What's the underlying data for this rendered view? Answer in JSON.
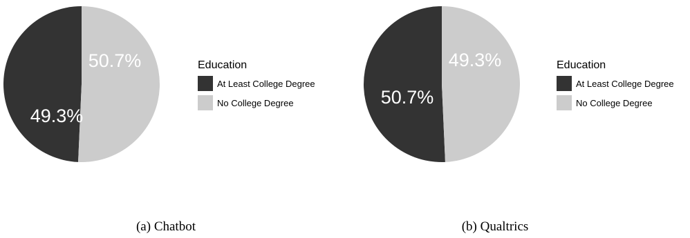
{
  "chart_data": [
    {
      "type": "pie",
      "caption": "(a) Chatbot",
      "legend_title": "Education",
      "legend_placement": "right",
      "categories": [
        "At Least College Degree",
        "No College Degree"
      ],
      "values": [
        49.3,
        50.7
      ],
      "labels": [
        "49.3%",
        "50.7%"
      ],
      "colors": [
        "#333333",
        "#cccccc"
      ],
      "label_colors": [
        "#ffffff",
        "#ffffff"
      ]
    },
    {
      "type": "pie",
      "caption": "(b) Qualtrics",
      "legend_title": "Education",
      "legend_placement": "right",
      "categories": [
        "At Least College Degree",
        "No College Degree"
      ],
      "values": [
        50.7,
        49.3
      ],
      "labels": [
        "50.7%",
        "49.3%"
      ],
      "colors": [
        "#333333",
        "#cccccc"
      ],
      "label_colors": [
        "#ffffff",
        "#ffffff"
      ]
    }
  ]
}
